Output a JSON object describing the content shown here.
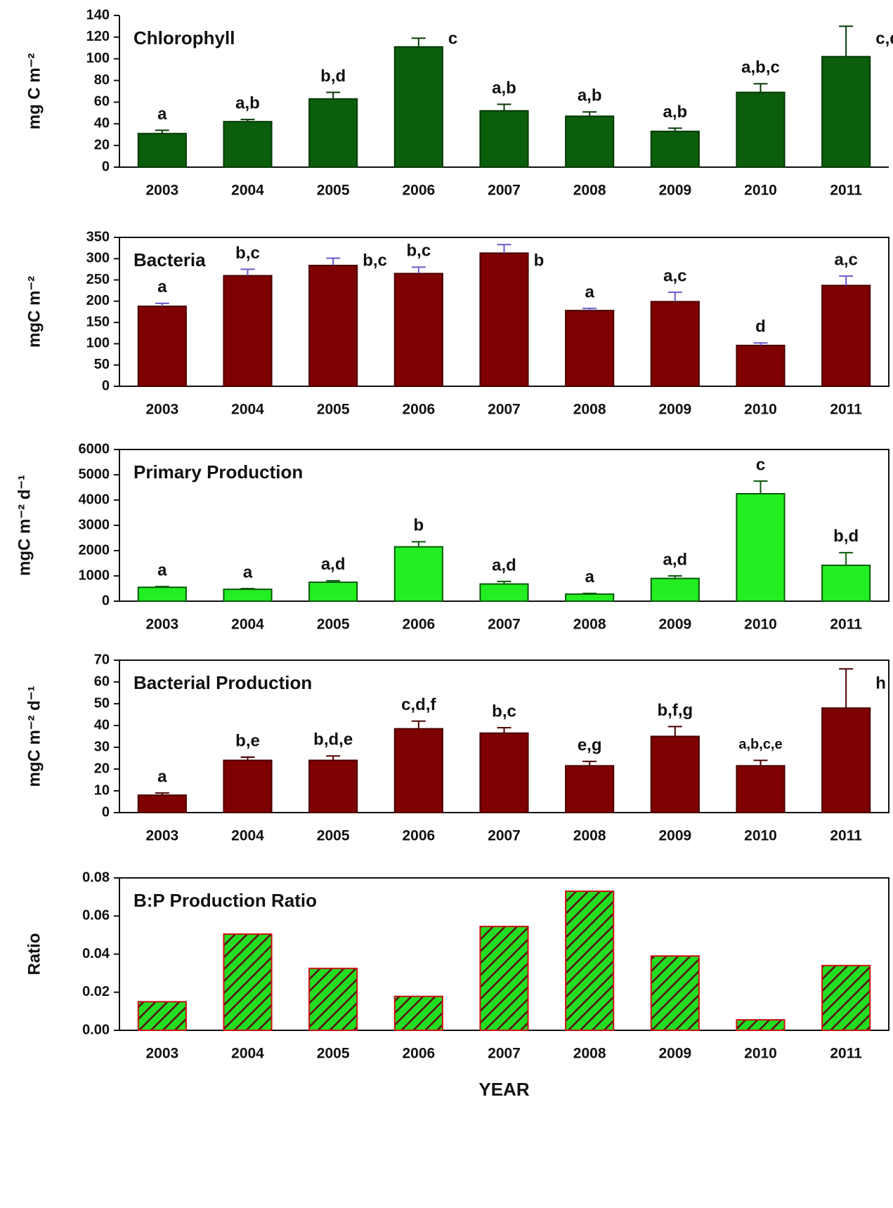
{
  "chart_data": [
    {
      "type": "bar",
      "title": "Chlorophyll",
      "y_label": "mg C m⁻²",
      "categories": [
        "2003",
        "2004",
        "2005",
        "2006",
        "2007",
        "2008",
        "2009",
        "2010",
        "2011"
      ],
      "values": [
        31,
        42,
        63,
        111,
        52,
        47,
        33,
        69,
        102
      ],
      "errors": [
        3,
        2,
        6,
        8,
        6,
        4,
        3,
        8,
        28
      ],
      "annotations": [
        "a",
        "a,b",
        "b,d",
        "c",
        "a,b",
        "a,b",
        "a,b",
        "a,b,c",
        "c,d"
      ],
      "color": "#0b5e0b",
      "edge_color": "#063806",
      "error_color": "#063806",
      "title_color": "#2b9b2b",
      "frame": false,
      "ylim": [
        0,
        140
      ],
      "yticks": [
        0,
        20,
        40,
        60,
        80,
        100,
        120,
        140
      ]
    },
    {
      "type": "bar",
      "title": "Bacteria",
      "y_label": "mgC m⁻²",
      "categories": [
        "2003",
        "2004",
        "2005",
        "2006",
        "2007",
        "2008",
        "2009",
        "2010",
        "2011"
      ],
      "values": [
        188,
        260,
        284,
        265,
        313,
        178,
        199,
        96,
        237
      ],
      "errors": [
        7,
        15,
        17,
        15,
        20,
        5,
        22,
        6,
        22
      ],
      "annotations": [
        "a",
        "b,c",
        "b,c",
        "b,c",
        "b",
        "a",
        "a,c",
        "d",
        "a,c"
      ],
      "color": "#7f0000",
      "edge_color": "#4a0000",
      "error_color": "#6a5acd",
      "title_color": "#2fa02f",
      "frame": true,
      "ylim": [
        0,
        350
      ],
      "yticks": [
        0,
        50,
        100,
        150,
        200,
        250,
        300,
        350
      ]
    },
    {
      "type": "bar",
      "title": "Primary Production",
      "y_label": "mgC m⁻² d⁻¹",
      "categories": [
        "2003",
        "2004",
        "2005",
        "2006",
        "2007",
        "2008",
        "2009",
        "2010",
        "2011"
      ],
      "values": [
        550,
        470,
        750,
        2150,
        680,
        280,
        900,
        4250,
        1420
      ],
      "errors": [
        30,
        30,
        60,
        200,
        100,
        30,
        100,
        500,
        500
      ],
      "annotations": [
        "a",
        "a",
        "a,d",
        "b",
        "a,d",
        "a",
        "a,d",
        "c",
        "b,d"
      ],
      "color": "#22ee22",
      "edge_color": "#0a5a0a",
      "error_color": "#0a5a0a",
      "title_color": "#2fa02f",
      "frame": true,
      "ylim": [
        0,
        6000
      ],
      "yticks": [
        0,
        1000,
        2000,
        3000,
        4000,
        5000,
        6000
      ]
    },
    {
      "type": "bar",
      "title": "Bacterial Production",
      "y_label": "mgC m⁻² d⁻¹",
      "categories": [
        "2003",
        "2004",
        "2005",
        "2006",
        "2007",
        "2008",
        "2009",
        "2010",
        "2011"
      ],
      "values": [
        8,
        24,
        24,
        38.5,
        36.5,
        21.5,
        35,
        21.5,
        48
      ],
      "errors": [
        1,
        1.5,
        2,
        3.5,
        2.5,
        2,
        4.5,
        2.5,
        18
      ],
      "annotations": [
        "a",
        "b,e",
        "b,d,e",
        "c,d,f",
        "b,c",
        "e,g",
        "b,f,g",
        "a,b,c,e",
        "h"
      ],
      "color": "#7f0000",
      "edge_color": "#4a0000",
      "error_color": "#4a0000",
      "title_color": "#2fa02f",
      "frame": true,
      "ylim": [
        0,
        70
      ],
      "yticks": [
        0,
        10,
        20,
        30,
        40,
        50,
        60,
        70
      ]
    },
    {
      "type": "bar",
      "title": "B:P Production Ratio",
      "y_label": "Ratio",
      "x_label": "YEAR",
      "categories": [
        "2003",
        "2004",
        "2005",
        "2006",
        "2007",
        "2008",
        "2009",
        "2010",
        "2011"
      ],
      "values": [
        0.015,
        0.0505,
        0.0325,
        0.0178,
        0.0545,
        0.073,
        0.039,
        0.0055,
        0.034
      ],
      "color": "#22dd22",
      "hatch": true,
      "hatch_color": "#5a0a0a",
      "edge_color": "#cc1010",
      "title_color": "#2fa02f",
      "frame": true,
      "ylim": [
        0,
        0.08
      ],
      "yticks": [
        {
          "value": 0,
          "label": "0.00"
        },
        {
          "value": 0.02,
          "label": "0.02"
        },
        {
          "value": 0.04,
          "label": "0.04"
        },
        {
          "value": 0.06,
          "label": "0.06"
        },
        {
          "value": 0.08,
          "label": "0.08"
        }
      ]
    }
  ]
}
